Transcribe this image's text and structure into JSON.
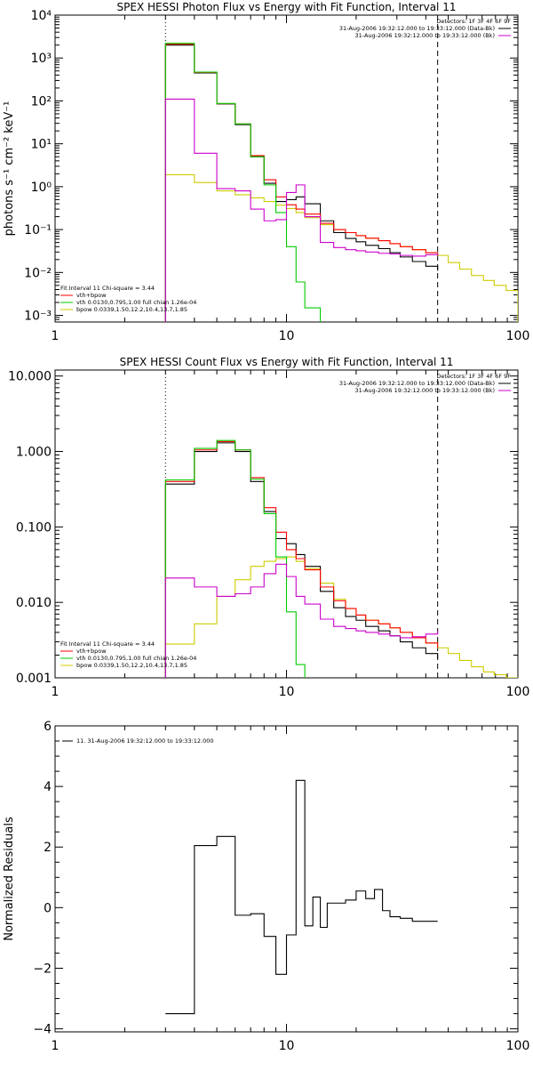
{
  "chart_data": [
    {
      "type": "line",
      "title": "SPEX HESSI Photon Flux vs Energy with Fit Function, Interval 11",
      "xlabel": "",
      "ylabel": "photons s⁻¹ cm⁻² keV⁻¹",
      "x_scale": "log",
      "y_scale": "log",
      "xlim": [
        1,
        100
      ],
      "ylim": [
        0.0007,
        10000
      ],
      "x_ticks": [
        {
          "value": 1,
          "label": "1"
        },
        {
          "value": 10,
          "label": "10"
        },
        {
          "value": 100,
          "label": "100"
        }
      ],
      "y_ticks": [
        {
          "value": 0.001,
          "label": "10⁻³"
        },
        {
          "value": 0.01,
          "label": "10⁻²"
        },
        {
          "value": 0.1,
          "label": "10⁻¹"
        },
        {
          "value": 1,
          "label": "10⁰"
        },
        {
          "value": 10,
          "label": "10¹"
        },
        {
          "value": 100,
          "label": "10²"
        },
        {
          "value": 1000,
          "label": "10³"
        },
        {
          "value": 10000,
          "label": "10⁴"
        }
      ],
      "vlines": [
        {
          "x": 3,
          "style": "dotted"
        },
        {
          "x": 45,
          "style": "dashed"
        }
      ],
      "legend_top": [
        {
          "text": "Detectors: 1F 3F 4F 6F 9F",
          "color": "#000000"
        },
        {
          "text": "31-Aug-2006 19:32:12.000 to 19:33:12.000 (Data-Bk)",
          "color": "#000000"
        },
        {
          "text": "31-Aug-2006 19:32:12.000 to 19:33:12.000 (Bk)",
          "color": "#cc00cc"
        }
      ],
      "legend_bottom": [
        {
          "text": "Fit Interval 11    Chi-square = 3.44",
          "color": "#000000"
        },
        {
          "text": "vth+bpow",
          "color": "#ff0000"
        },
        {
          "text": "vth 0.0130,0.795,1.00  full chian 1.26e-04",
          "color": "#00cc00"
        },
        {
          "text": "bpow 0.0339,1.50,12.2,10.4,13.7,1.85",
          "color": "#cccc00"
        }
      ],
      "series": [
        {
          "color": "#cccc00",
          "edges": [
            3,
            4,
            5,
            6,
            7,
            8,
            9,
            10,
            11,
            12,
            14,
            16,
            18,
            20,
            22,
            25,
            28,
            31,
            35,
            40,
            45,
            50,
            56,
            63,
            71,
            79,
            89,
            100
          ],
          "values": [
            1.9,
            1.25,
            0.8,
            0.65,
            0.55,
            0.45,
            0.37,
            0.31,
            0.25,
            0.19,
            0.13,
            0.1,
            0.085,
            0.072,
            0.063,
            0.055,
            0.047,
            0.04,
            0.034,
            0.029,
            0.025,
            0.017,
            0.012,
            0.0085,
            0.0065,
            0.005,
            0.0038
          ]
        },
        {
          "color": "#000000",
          "edges": [
            3,
            4,
            5,
            6,
            7,
            8,
            9,
            10,
            11,
            12,
            14,
            16,
            18,
            20,
            22,
            25,
            28,
            31,
            35,
            40,
            45
          ],
          "values": [
            2000,
            450,
            85,
            28,
            5,
            1.2,
            0.45,
            0.5,
            0.58,
            0.4,
            0.16,
            0.085,
            0.062,
            0.052,
            0.043,
            0.036,
            0.029,
            0.023,
            0.018,
            0.014,
            0.011
          ]
        },
        {
          "color": "#ff0000",
          "edges": [
            3,
            4,
            5,
            6,
            7,
            8,
            9,
            10,
            11,
            12,
            14,
            16,
            18,
            20,
            22,
            25,
            28,
            31,
            35,
            40,
            45
          ],
          "values": [
            2100,
            460,
            86,
            29,
            5.3,
            1.45,
            0.58,
            0.38,
            0.3,
            0.23,
            0.14,
            0.1,
            0.085,
            0.072,
            0.063,
            0.055,
            0.047,
            0.04,
            0.034,
            0.029,
            0.025
          ]
        },
        {
          "color": "#00cc00",
          "edges": [
            3,
            4,
            5,
            6,
            7,
            8,
            9,
            10,
            11,
            12,
            14
          ],
          "values": [
            2200,
            470,
            87,
            29,
            5,
            1.1,
            0.25,
            0.04,
            0.006,
            0.0015
          ]
        },
        {
          "color": "#cc00cc",
          "edges": [
            3,
            4,
            5,
            6,
            7,
            8,
            9,
            10,
            11,
            12,
            14,
            16,
            18,
            20,
            22,
            25,
            28,
            31,
            35,
            40,
            45
          ],
          "values": [
            110,
            6,
            0.9,
            0.8,
            0.3,
            0.16,
            0.17,
            0.73,
            1.1,
            0.2,
            0.05,
            0.038,
            0.034,
            0.032,
            0.03,
            0.028,
            0.027,
            0.025,
            0.024,
            0.026,
            0.028
          ]
        }
      ]
    },
    {
      "type": "line",
      "title": "SPEX HESSI Count Flux vs Energy with Fit Function, Interval 11",
      "xlabel": "",
      "ylabel": "",
      "x_scale": "log",
      "y_scale": "log",
      "xlim": [
        1,
        100
      ],
      "ylim": [
        0.001,
        12
      ],
      "x_ticks": [
        {
          "value": 1,
          "label": "1"
        },
        {
          "value": 10,
          "label": "10"
        },
        {
          "value": 100,
          "label": "100"
        }
      ],
      "y_ticks": [
        {
          "value": 0.001,
          "label": "0.001"
        },
        {
          "value": 0.01,
          "label": "0.010"
        },
        {
          "value": 0.1,
          "label": "0.100"
        },
        {
          "value": 1,
          "label": "1.000"
        },
        {
          "value": 10,
          "label": "10.000"
        }
      ],
      "vlines": [
        {
          "x": 3,
          "style": "dotted"
        },
        {
          "x": 45,
          "style": "dashed"
        }
      ],
      "legend_top": [
        {
          "text": "Detectors: 1F 3F 4F 6F 9F",
          "color": "#000000"
        },
        {
          "text": "31-Aug-2006 19:32:12.000 to 19:33:12.000 (Data-Bk)",
          "color": "#000000"
        },
        {
          "text": "31-Aug-2006 19:32:12.000 to 19:33:12.000 (Bk)",
          "color": "#cc00cc"
        }
      ],
      "legend_bottom": [
        {
          "text": "Fit Interval 11    Chi-square = 3.44",
          "color": "#000000"
        },
        {
          "text": "vth+bpow",
          "color": "#ff0000"
        },
        {
          "text": "vth 0.0130,0.795,1.00  full chian 1.26e-04",
          "color": "#00cc00"
        },
        {
          "text": "bpow 0.0339,1.50,12.2,10.4,13.7,1.85",
          "color": "#cccc00"
        }
      ],
      "series": [
        {
          "color": "#cccc00",
          "edges": [
            3,
            4,
            5,
            6,
            7,
            8,
            9,
            10,
            11,
            12,
            14,
            16,
            18,
            20,
            22,
            25,
            28,
            31,
            35,
            40,
            45,
            50,
            56,
            63,
            71,
            79,
            89,
            100
          ],
          "values": [
            0.0028,
            0.0052,
            0.012,
            0.02,
            0.03,
            0.035,
            0.038,
            0.04,
            0.035,
            0.028,
            0.018,
            0.011,
            0.0083,
            0.0068,
            0.0058,
            0.0052,
            0.0046,
            0.004,
            0.0034,
            0.0029,
            0.0025,
            0.0021,
            0.0017,
            0.0014,
            0.0012,
            0.0011,
            0.001
          ]
        },
        {
          "color": "#000000",
          "edges": [
            3,
            4,
            5,
            6,
            7,
            8,
            9,
            10,
            11,
            12,
            14,
            16,
            18,
            20,
            22,
            25,
            28,
            31,
            35,
            40,
            45
          ],
          "values": [
            0.37,
            1.0,
            1.3,
            1.0,
            0.4,
            0.16,
            0.07,
            0.06,
            0.043,
            0.03,
            0.014,
            0.0085,
            0.0065,
            0.0058,
            0.0048,
            0.0042,
            0.0036,
            0.003,
            0.0025,
            0.0021,
            0.0018
          ]
        },
        {
          "color": "#ff0000",
          "edges": [
            3,
            4,
            5,
            6,
            7,
            8,
            9,
            10,
            11,
            12,
            14,
            16,
            18,
            20,
            22,
            25,
            28,
            31,
            35,
            40,
            45
          ],
          "values": [
            0.4,
            1.05,
            1.35,
            1.05,
            0.45,
            0.18,
            0.085,
            0.05,
            0.038,
            0.027,
            0.016,
            0.0105,
            0.0083,
            0.0068,
            0.0058,
            0.0052,
            0.0046,
            0.004,
            0.0034,
            0.0029,
            0.0025
          ]
        },
        {
          "color": "#00cc00",
          "edges": [
            3,
            4,
            5,
            6,
            7,
            8,
            9,
            10,
            11,
            12
          ],
          "values": [
            0.42,
            1.1,
            1.4,
            1.05,
            0.43,
            0.15,
            0.04,
            0.0075,
            0.0015
          ]
        },
        {
          "color": "#cc00cc",
          "edges": [
            3,
            4,
            5,
            6,
            7,
            8,
            9,
            10,
            11,
            12,
            14,
            16,
            18,
            20,
            22,
            25,
            28,
            31,
            35,
            40,
            45
          ],
          "values": [
            0.021,
            0.016,
            0.012,
            0.013,
            0.016,
            0.024,
            0.032,
            0.022,
            0.012,
            0.0095,
            0.006,
            0.0048,
            0.0045,
            0.0042,
            0.004,
            0.0038,
            0.0036,
            0.0034,
            0.0035,
            0.0038,
            0.0042
          ]
        }
      ]
    },
    {
      "type": "line",
      "title": "",
      "xlabel": "",
      "ylabel": "Normalized Residuals",
      "x_scale": "log",
      "y_scale": "linear",
      "xlim": [
        1,
        100
      ],
      "ylim": [
        -4.1,
        6
      ],
      "x_ticks": [
        {
          "value": 1,
          "label": "1"
        },
        {
          "value": 10,
          "label": "10"
        },
        {
          "value": 100,
          "label": "100"
        }
      ],
      "y_ticks": [
        {
          "value": -4,
          "label": "−4"
        },
        {
          "value": -2,
          "label": "−2"
        },
        {
          "value": 0,
          "label": "0"
        },
        {
          "value": 2,
          "label": "2"
        },
        {
          "value": 4,
          "label": "4"
        },
        {
          "value": 6,
          "label": "6"
        }
      ],
      "legend_top_left": "11. 31-Aug-2006 19:32:12.000 to 19:33:12.000",
      "series": [
        {
          "color": "#000000",
          "edges": [
            3,
            4,
            5,
            6,
            7,
            8,
            9,
            10,
            11,
            12,
            13,
            14,
            15,
            16,
            18,
            20,
            22,
            24,
            26,
            28,
            31,
            35,
            40,
            45
          ],
          "values": [
            -3.5,
            2.05,
            2.35,
            -0.25,
            -0.2,
            -0.95,
            -2.2,
            -0.9,
            4.2,
            -0.6,
            0.35,
            -0.65,
            0.15,
            0.15,
            0.25,
            0.55,
            0.3,
            0.6,
            -0.1,
            -0.3,
            -0.35,
            -0.45,
            -0.45
          ]
        }
      ]
    }
  ]
}
